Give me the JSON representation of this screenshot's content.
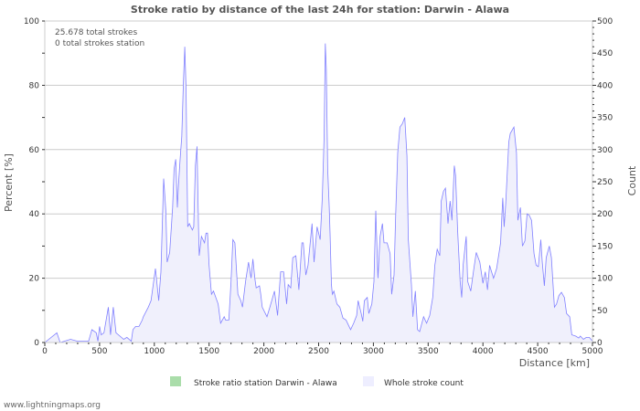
{
  "chart_data": {
    "type": "area",
    "title": "Stroke ratio by distance of the last 24h for station: Darwin - Alawa",
    "xlabel": "Distance   [km]",
    "ylabel_left": "Percent   [%]",
    "ylabel_right": "Count",
    "xlim": [
      0,
      5000
    ],
    "ylim_left": [
      0,
      100
    ],
    "ylim_right": [
      0,
      500
    ],
    "x_ticks": [
      "0",
      "500",
      "1000",
      "1500",
      "2000",
      "2500",
      "3000",
      "3500",
      "4000",
      "4500",
      "5000"
    ],
    "y_left_ticks": [
      "0",
      "20",
      "40",
      "60",
      "80",
      "100"
    ],
    "y_right_ticks": [
      "0",
      "50",
      "100",
      "150",
      "200",
      "250",
      "300",
      "350",
      "400",
      "450",
      "500"
    ],
    "grid": true,
    "annotations": [
      "25.678 total strokes",
      "0 total strokes station"
    ],
    "legend": [
      {
        "label": "Stroke ratio station Darwin - Alawa",
        "color": "#aaddaa"
      },
      {
        "label": "Whole stroke count",
        "color": "#eeeeff"
      }
    ],
    "legend_placement": "bottom",
    "series": [
      {
        "name": "Stroke ratio station Darwin - Alawa",
        "axis": "left",
        "points": []
      },
      {
        "name": "Whole stroke count",
        "axis": "right",
        "line_color": "#8080ff",
        "fill_color": "#f0f0fc",
        "points": [
          [
            0,
            0
          ],
          [
            110,
            15
          ],
          [
            140,
            0
          ],
          [
            235,
            5
          ],
          [
            300,
            2
          ],
          [
            400,
            2
          ],
          [
            430,
            20
          ],
          [
            470,
            15
          ],
          [
            485,
            2
          ],
          [
            500,
            25
          ],
          [
            515,
            12
          ],
          [
            540,
            15
          ],
          [
            570,
            45
          ],
          [
            580,
            55
          ],
          [
            600,
            12
          ],
          [
            625,
            55
          ],
          [
            650,
            15
          ],
          [
            720,
            5
          ],
          [
            750,
            8
          ],
          [
            790,
            2
          ],
          [
            805,
            20
          ],
          [
            830,
            25
          ],
          [
            860,
            25
          ],
          [
            890,
            35
          ],
          [
            900,
            40
          ],
          [
            945,
            55
          ],
          [
            970,
            65
          ],
          [
            1010,
            115
          ],
          [
            1040,
            65
          ],
          [
            1060,
            110
          ],
          [
            1085,
            255
          ],
          [
            1105,
            205
          ],
          [
            1117,
            125
          ],
          [
            1140,
            140
          ],
          [
            1167,
            210
          ],
          [
            1180,
            270
          ],
          [
            1195,
            285
          ],
          [
            1210,
            210
          ],
          [
            1220,
            245
          ],
          [
            1235,
            285
          ],
          [
            1250,
            320
          ],
          [
            1265,
            400
          ],
          [
            1278,
            460
          ],
          [
            1290,
            395
          ],
          [
            1305,
            180
          ],
          [
            1320,
            185
          ],
          [
            1333,
            180
          ],
          [
            1347,
            175
          ],
          [
            1360,
            180
          ],
          [
            1375,
            275
          ],
          [
            1390,
            305
          ],
          [
            1403,
            180
          ],
          [
            1410,
            135
          ],
          [
            1430,
            165
          ],
          [
            1458,
            155
          ],
          [
            1472,
            170
          ],
          [
            1486,
            170
          ],
          [
            1500,
            120
          ],
          [
            1522,
            75
          ],
          [
            1540,
            80
          ],
          [
            1583,
            60
          ],
          [
            1605,
            30
          ],
          [
            1638,
            40
          ],
          [
            1650,
            35
          ],
          [
            1680,
            35
          ],
          [
            1700,
            95
          ],
          [
            1717,
            160
          ],
          [
            1735,
            155
          ],
          [
            1763,
            75
          ],
          [
            1790,
            65
          ],
          [
            1805,
            55
          ],
          [
            1833,
            95
          ],
          [
            1860,
            125
          ],
          [
            1883,
            100
          ],
          [
            1900,
            130
          ],
          [
            1917,
            100
          ],
          [
            1930,
            85
          ],
          [
            1960,
            88
          ],
          [
            1972,
            75
          ],
          [
            1985,
            55
          ],
          [
            2028,
            40
          ],
          [
            2055,
            55
          ],
          [
            2097,
            80
          ],
          [
            2125,
            42
          ],
          [
            2153,
            110
          ],
          [
            2180,
            110
          ],
          [
            2208,
            60
          ],
          [
            2222,
            90
          ],
          [
            2245,
            85
          ],
          [
            2264,
            132
          ],
          [
            2292,
            135
          ],
          [
            2320,
            82
          ],
          [
            2347,
            155
          ],
          [
            2360,
            155
          ],
          [
            2383,
            105
          ],
          [
            2403,
            120
          ],
          [
            2440,
            185
          ],
          [
            2458,
            125
          ],
          [
            2486,
            180
          ],
          [
            2514,
            160
          ],
          [
            2533,
            225
          ],
          [
            2550,
            320
          ],
          [
            2561,
            465
          ],
          [
            2570,
            425
          ],
          [
            2583,
            270
          ],
          [
            2597,
            210
          ],
          [
            2605,
            165
          ],
          [
            2617,
            90
          ],
          [
            2625,
            75
          ],
          [
            2639,
            80
          ],
          [
            2667,
            60
          ],
          [
            2694,
            55
          ],
          [
            2722,
            38
          ],
          [
            2750,
            35
          ],
          [
            2778,
            25
          ],
          [
            2792,
            20
          ],
          [
            2820,
            30
          ],
          [
            2847,
            42
          ],
          [
            2861,
            65
          ],
          [
            2889,
            45
          ],
          [
            2903,
            33
          ],
          [
            2917,
            65
          ],
          [
            2944,
            70
          ],
          [
            2958,
            45
          ],
          [
            2986,
            60
          ],
          [
            3005,
            95
          ],
          [
            3022,
            205
          ],
          [
            3042,
            100
          ],
          [
            3061,
            165
          ],
          [
            3083,
            185
          ],
          [
            3097,
            155
          ],
          [
            3125,
            155
          ],
          [
            3153,
            138
          ],
          [
            3167,
            75
          ],
          [
            3189,
            105
          ],
          [
            3203,
            195
          ],
          [
            3222,
            295
          ],
          [
            3242,
            335
          ],
          [
            3264,
            340
          ],
          [
            3286,
            350
          ],
          [
            3306,
            290
          ],
          [
            3319,
            160
          ],
          [
            3347,
            90
          ],
          [
            3361,
            40
          ],
          [
            3383,
            80
          ],
          [
            3403,
            20
          ],
          [
            3422,
            17
          ],
          [
            3458,
            40
          ],
          [
            3486,
            30
          ],
          [
            3514,
            42
          ],
          [
            3542,
            70
          ],
          [
            3561,
            120
          ],
          [
            3583,
            145
          ],
          [
            3606,
            135
          ],
          [
            3619,
            220
          ],
          [
            3639,
            235
          ],
          [
            3658,
            240
          ],
          [
            3681,
            185
          ],
          [
            3700,
            220
          ],
          [
            3717,
            190
          ],
          [
            3739,
            275
          ],
          [
            3750,
            260
          ],
          [
            3769,
            175
          ],
          [
            3792,
            95
          ],
          [
            3806,
            70
          ],
          [
            3819,
            120
          ],
          [
            3847,
            165
          ],
          [
            3861,
            95
          ],
          [
            3889,
            80
          ],
          [
            3917,
            115
          ],
          [
            3939,
            140
          ],
          [
            3972,
            125
          ],
          [
            4000,
            92
          ],
          [
            4022,
            110
          ],
          [
            4042,
            82
          ],
          [
            4061,
            120
          ],
          [
            4097,
            100
          ],
          [
            4125,
            115
          ],
          [
            4161,
            155
          ],
          [
            4181,
            225
          ],
          [
            4194,
            180
          ],
          [
            4208,
            215
          ],
          [
            4236,
            312
          ],
          [
            4250,
            325
          ],
          [
            4283,
            335
          ],
          [
            4306,
            295
          ],
          [
            4319,
            190
          ],
          [
            4342,
            210
          ],
          [
            4361,
            150
          ],
          [
            4383,
            158
          ],
          [
            4403,
            200
          ],
          [
            4422,
            198
          ],
          [
            4444,
            190
          ],
          [
            4467,
            138
          ],
          [
            4486,
            120
          ],
          [
            4506,
            118
          ],
          [
            4528,
            160
          ],
          [
            4542,
            125
          ],
          [
            4561,
            88
          ],
          [
            4578,
            132
          ],
          [
            4606,
            150
          ],
          [
            4625,
            132
          ],
          [
            4653,
            55
          ],
          [
            4672,
            60
          ],
          [
            4694,
            73
          ],
          [
            4717,
            78
          ],
          [
            4744,
            70
          ],
          [
            4764,
            45
          ],
          [
            4792,
            40
          ],
          [
            4811,
            12
          ],
          [
            4847,
            10
          ],
          [
            4875,
            7
          ],
          [
            4889,
            10
          ],
          [
            4917,
            5
          ],
          [
            4944,
            8
          ],
          [
            4972,
            8
          ],
          [
            5000,
            2
          ]
        ]
      }
    ]
  },
  "footer": "www.lightningmaps.org"
}
